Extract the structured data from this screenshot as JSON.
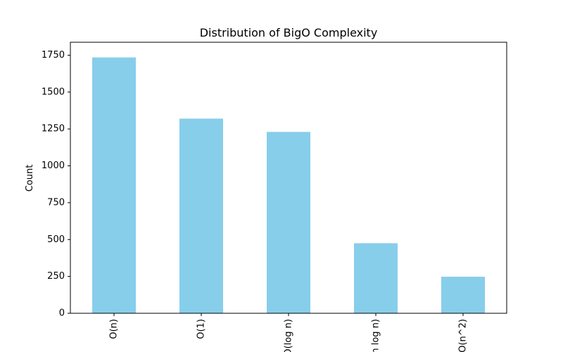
{
  "chart_data": {
    "type": "bar",
    "title": "Distribution of BigO Complexity",
    "xlabel": "",
    "ylabel": "Count",
    "categories": [
      "O(n)",
      "O(1)",
      "O(log n)",
      "O(n log n)",
      "O(n^2)"
    ],
    "values": [
      1735,
      1320,
      1230,
      475,
      248
    ],
    "ylim": [
      0,
      1838
    ],
    "yticks": [
      0,
      250,
      500,
      750,
      1000,
      1250,
      1500,
      1750
    ],
    "bar_color": "#87ceeb",
    "grid": false,
    "legend": "none"
  }
}
